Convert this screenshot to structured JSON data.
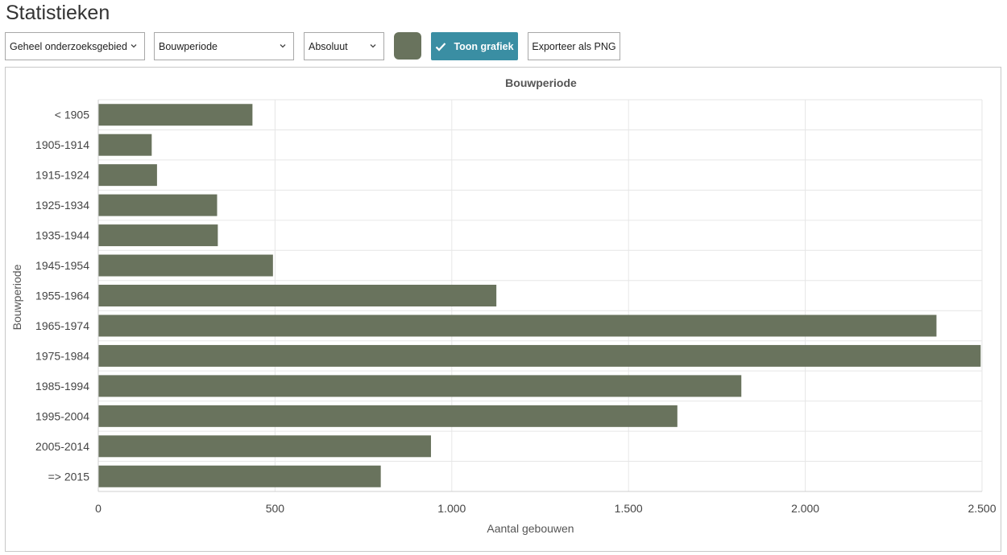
{
  "page": {
    "title": "Statistieken"
  },
  "toolbar": {
    "area_select": "Geheel onderzoeksgebied",
    "dimension_select": "Bouwperiode",
    "mode_select": "Absoluut",
    "color_swatch": "#69735d",
    "show_chart_label": "Toon grafiek",
    "show_chart_color": "#3a8ea3",
    "export_label": "Exporteer als PNG"
  },
  "chart_data": {
    "type": "bar",
    "orientation": "horizontal",
    "title": "Bouwperiode",
    "xlabel": "Aantal gebouwen",
    "ylabel": "Bouwperiode",
    "categories": [
      "< 1905",
      "1905-1914",
      "1915-1924",
      "1925-1934",
      "1935-1944",
      "1945-1954",
      "1955-1964",
      "1965-1974",
      "1975-1984",
      "1985-1994",
      "1995-2004",
      "2005-2014",
      "=> 2015"
    ],
    "values": [
      435,
      150,
      165,
      335,
      337,
      493,
      1125,
      2370,
      2495,
      1818,
      1637,
      940,
      798
    ],
    "xlim": [
      0,
      2500
    ],
    "xticks": [
      0,
      500,
      1000,
      1500,
      2000,
      2500
    ],
    "xtick_labels": [
      "0",
      "500",
      "1.000",
      "1.500",
      "2.000",
      "2.500"
    ],
    "bar_color": "#69735d",
    "grid": true,
    "legend": "none"
  }
}
